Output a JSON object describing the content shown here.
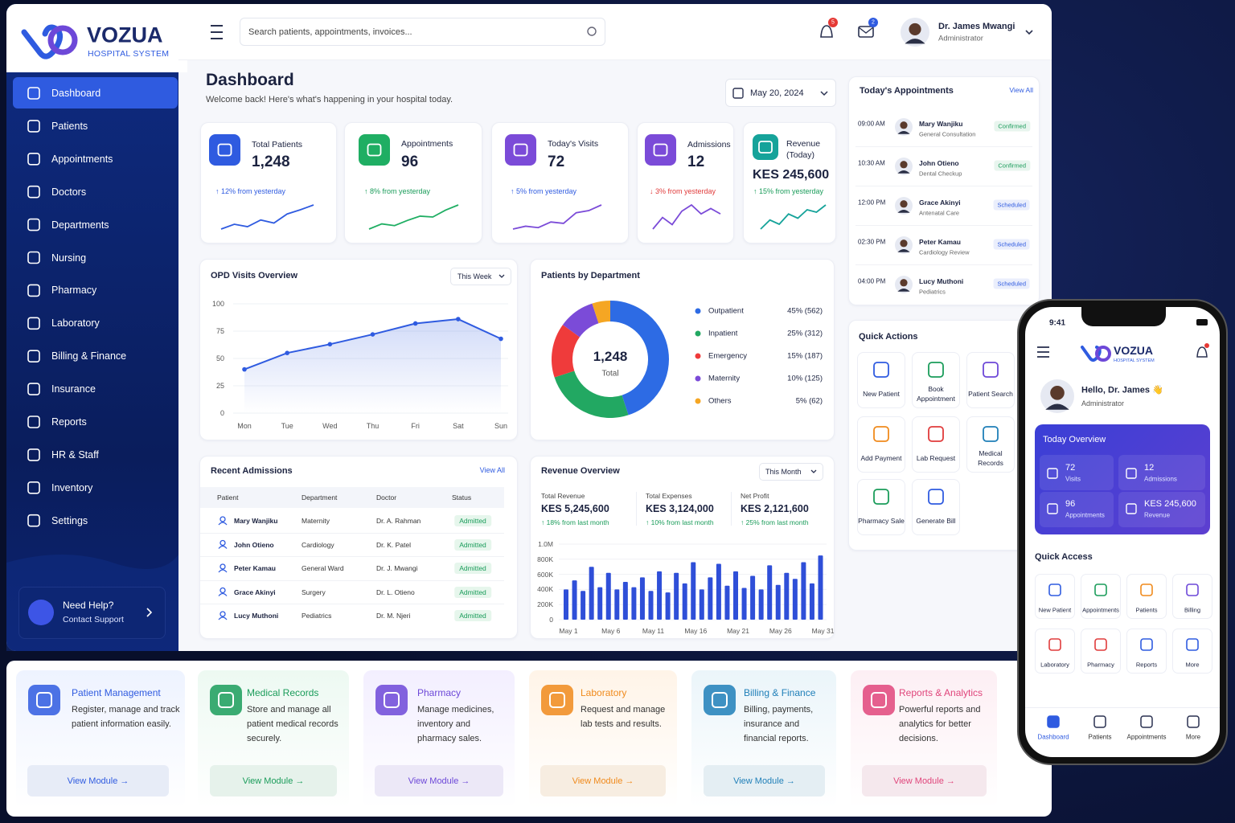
{
  "brand": {
    "name": "VOZUA",
    "tagline": "HOSPITAL SYSTEM"
  },
  "sidebar": {
    "items": [
      "Dashboard",
      "Patients",
      "Appointments",
      "Doctors",
      "Departments",
      "Nursing",
      "Pharmacy",
      "Laboratory",
      "Billing & Finance",
      "Insurance",
      "Reports",
      "HR & Staff",
      "Inventory",
      "Settings"
    ],
    "help": {
      "title": "Need Help?",
      "subtitle": "Contact Support"
    }
  },
  "topbar": {
    "search_placeholder": "Search patients, appointments, invoices...",
    "notifications": 5,
    "messages": 2,
    "user": {
      "name": "Dr. James Mwangi",
      "role": "Administrator"
    }
  },
  "header": {
    "title": "Dashboard",
    "subtitle": "Welcome back! Here's what's happening in your hospital today.",
    "date": "May 20, 2024"
  },
  "stats": [
    {
      "label": "Total Patients",
      "value": "1,248",
      "change": "↑ 12% from yesterday",
      "change_color": "#2f5be0",
      "color": "#2f5be0",
      "trend": [
        30,
        38,
        34,
        45,
        40,
        55,
        62,
        70
      ]
    },
    {
      "label": "Appointments",
      "value": "96",
      "change": "↑ 8% from yesterday",
      "change_color": "#1a9c5a",
      "color": "#1fae63",
      "trend": [
        30,
        36,
        34,
        40,
        45,
        44,
        52,
        58
      ]
    },
    {
      "label": "Today's Visits",
      "value": "72",
      "change": "↑ 5% from yesterday",
      "change_color": "#2f5be0",
      "color": "#7b4bd8",
      "trend": [
        32,
        36,
        34,
        42,
        40,
        55,
        58,
        66
      ]
    },
    {
      "label": "Admissions",
      "value": "12",
      "change": "↓ 3% from yesterday",
      "change_color": "#e03b3b",
      "color": "#7b4bd8",
      "trend": [
        35,
        48,
        40,
        55,
        62,
        52,
        58,
        52
      ]
    },
    {
      "label": "Revenue (Today)",
      "value": "KES 245,600",
      "change": "↑ 15% from yesterday",
      "change_color": "#1a9c5a",
      "color": "#16a39a",
      "trend": [
        30,
        45,
        38,
        55,
        48,
        62,
        58,
        70
      ]
    }
  ],
  "opd_chart": {
    "type": "line",
    "title": "OPD Visits Overview",
    "filter": "This Week",
    "categories": [
      "Mon",
      "Tue",
      "Wed",
      "Thu",
      "Fri",
      "Sat",
      "Sun"
    ],
    "values": [
      40,
      55,
      63,
      72,
      82,
      86,
      68
    ],
    "ylim": [
      0,
      100
    ],
    "yticks": [
      0,
      25,
      50,
      75,
      100
    ],
    "color": "#2f5be0"
  },
  "department_chart": {
    "type": "donut",
    "title": "Patients by Department",
    "center_value": "1,248",
    "center_label": "Total",
    "categories": [
      "Outpatient",
      "Inpatient",
      "Emergency",
      "Maternity",
      "Others"
    ],
    "values": [
      45,
      25,
      15,
      10,
      5
    ],
    "value_labels": [
      "45% (562)",
      "25% (312)",
      "15% (187)",
      "10% (125)",
      "5% (62)"
    ],
    "colors": [
      "#2d6be4",
      "#22a862",
      "#ef3b3b",
      "#7b4bd8",
      "#f5a623"
    ]
  },
  "admissions": {
    "title": "Recent Admissions",
    "link": "View All",
    "columns": [
      "Patient",
      "Department",
      "Doctor",
      "Status"
    ],
    "rows": [
      [
        "Mary Wanjiku",
        "Maternity",
        "Dr. A. Rahman",
        "Admitted"
      ],
      [
        "John Otieno",
        "Cardiology",
        "Dr. K. Patel",
        "Admitted"
      ],
      [
        "Peter Kamau",
        "General Ward",
        "Dr. J. Mwangi",
        "Admitted"
      ],
      [
        "Grace Akinyi",
        "Surgery",
        "Dr. L. Otieno",
        "Admitted"
      ],
      [
        "Lucy Muthoni",
        "Pediatrics",
        "Dr. M. Njeri",
        "Admitted"
      ]
    ]
  },
  "revenue": {
    "title": "Revenue Overview",
    "filter": "This Month",
    "totals": [
      {
        "label": "Total Revenue",
        "value": "KES 5,245,600",
        "change": "↑ 18% from last month"
      },
      {
        "label": "Total Expenses",
        "value": "KES 3,124,000",
        "change": "↑ 10% from last month"
      },
      {
        "label": "Net Profit",
        "value": "KES 2,121,600",
        "change": "↑ 25% from last month"
      }
    ],
    "chart": {
      "type": "bar",
      "categories": [
        "May 1",
        null,
        null,
        null,
        null,
        "May 6",
        null,
        null,
        null,
        null,
        "May 11",
        null,
        null,
        null,
        null,
        "May 16",
        null,
        null,
        null,
        null,
        "May 21",
        null,
        null,
        null,
        null,
        "May 26",
        null,
        null,
        null,
        null,
        "May 31"
      ],
      "values": [
        400000,
        520000,
        380000,
        700000,
        430000,
        620000,
        400000,
        500000,
        430000,
        560000,
        380000,
        640000,
        360000,
        620000,
        480000,
        760000,
        400000,
        560000,
        740000,
        450000,
        640000,
        420000,
        580000,
        400000,
        720000,
        460000,
        620000,
        540000,
        760000,
        480000,
        850000
      ],
      "ylim": [
        0,
        1000000
      ],
      "yticks": [
        0,
        {
          "value": 200000,
          "label": "200K"
        },
        {
          "value": 400000,
          "label": "400K"
        },
        {
          "value": 600000,
          "label": "600K"
        },
        {
          "value": 800000,
          "label": "800K"
        },
        {
          "value": 1000000,
          "label": "1.0M"
        }
      ],
      "color": "#2f4fd8"
    }
  },
  "appointments": {
    "title": "Today's Appointments",
    "link": "View All",
    "items": [
      {
        "time": "09:00 AM",
        "name": "Mary Wanjiku",
        "detail": "General Consultation",
        "status": "Confirmed",
        "color": "#1a9c5a"
      },
      {
        "time": "10:30 AM",
        "name": "John Otieno",
        "detail": "Dental Checkup",
        "status": "Confirmed",
        "color": "#1a9c5a"
      },
      {
        "time": "12:00 PM",
        "name": "Grace Akinyi",
        "detail": "Antenatal Care",
        "status": "Scheduled",
        "color": "#2f5be0"
      },
      {
        "time": "02:30 PM",
        "name": "Peter Kamau",
        "detail": "Cardiology Review",
        "status": "Scheduled",
        "color": "#2f5be0"
      },
      {
        "time": "04:00 PM",
        "name": "Lucy Muthoni",
        "detail": "Pediatrics",
        "status": "Scheduled",
        "color": "#2f5be0"
      }
    ]
  },
  "quick_actions": {
    "title": "Quick Actions",
    "items": [
      "New Patient",
      "Book Appointment",
      "Patient Search",
      "Add Payment",
      "Lab Request",
      "Medical Records",
      "Pharmacy Sale",
      "Generate Bill"
    ]
  },
  "modules": [
    {
      "title": "Patient Management",
      "description": "Register, manage and track patient information easily.",
      "button": "View Module →",
      "color": "#2f5be0",
      "tint": "#eef3ff"
    },
    {
      "title": "Medical Records",
      "description": "Store and manage all patient medical records securely.",
      "button": "View Module →",
      "color": "#1a9c5a",
      "tint": "#edf9f2"
    },
    {
      "title": "Pharmacy",
      "description": "Manage medicines, inventory and pharmacy sales.",
      "button": "View Module →",
      "color": "#6d48d8",
      "tint": "#f3efff"
    },
    {
      "title": "Laboratory",
      "description": "Request and manage lab tests and results.",
      "button": "View Module →",
      "color": "#f08a1c",
      "tint": "#fff4e8"
    },
    {
      "title": "Billing & Finance",
      "description": "Billing, payments, insurance and financial reports.",
      "button": "View Module →",
      "color": "#1f7fb8",
      "tint": "#ebf5fa"
    },
    {
      "title": "Reports & Analytics",
      "description": "Powerful reports and analytics for better decisions.",
      "button": "View Module →",
      "color": "#e0457b",
      "tint": "#fdeff4"
    }
  ],
  "mobile": {
    "time": "9:41",
    "brand": {
      "name": "VOZUA",
      "tagline": "HOSPITAL SYSTEM"
    },
    "greeting": "Hello, Dr. James 👋",
    "role": "Administrator",
    "overview": {
      "title": "Today Overview",
      "items": [
        {
          "value": "72",
          "label": "Visits"
        },
        {
          "value": "12",
          "label": "Admissions"
        },
        {
          "value": "96",
          "label": "Appointments"
        },
        {
          "value": "KES 245,600",
          "label": "Revenue"
        }
      ]
    },
    "quick_access": {
      "title": "Quick Access",
      "items": [
        "New Patient",
        "Appointments",
        "Patients",
        "Billing",
        "Laboratory",
        "Pharmacy",
        "Reports",
        "More"
      ]
    },
    "nav": [
      "Dashboard",
      "Patients",
      "Appointments",
      "More"
    ]
  }
}
